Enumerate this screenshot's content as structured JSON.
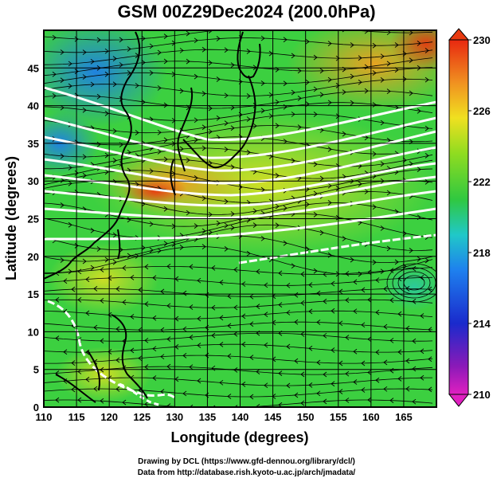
{
  "title": "GSM 00Z29Dec2024 (200.0hPa)",
  "credits": {
    "line1": "Drawing by DCL (https://www.gfd-dennou.org/library/dcl/)",
    "line2": "Data from http://database.rish.kyoto-u.ac.jp/arch/jmadata/"
  },
  "chart_data": {
    "type": "heatmap",
    "xlabel": "Longitude (degrees)",
    "ylabel": "Latitude  (degrees)",
    "xlim": [
      110,
      170
    ],
    "ylim": [
      0,
      50
    ],
    "x_ticks": [
      "110",
      "115",
      "120",
      "125",
      "130",
      "135",
      "140",
      "145",
      "150",
      "155",
      "160",
      "165"
    ],
    "y_ticks": [
      "0",
      "5",
      "10",
      "15",
      "20",
      "25",
      "30",
      "35",
      "40",
      "45"
    ],
    "colorbar": {
      "labels": [
        "210",
        "214",
        "218",
        "222",
        "226",
        "230"
      ],
      "range": [
        210,
        230
      ]
    },
    "field": "temperature (K) shaded, wind streamlines, isotachs in white",
    "colors": {
      "cold": "#d21fc0",
      "cool": "#1e88e8",
      "mid": "#30d040",
      "warm": "#f0c020",
      "hot": "#e83a10",
      "isotach": "#ffffff",
      "coast": "#000000"
    }
  }
}
